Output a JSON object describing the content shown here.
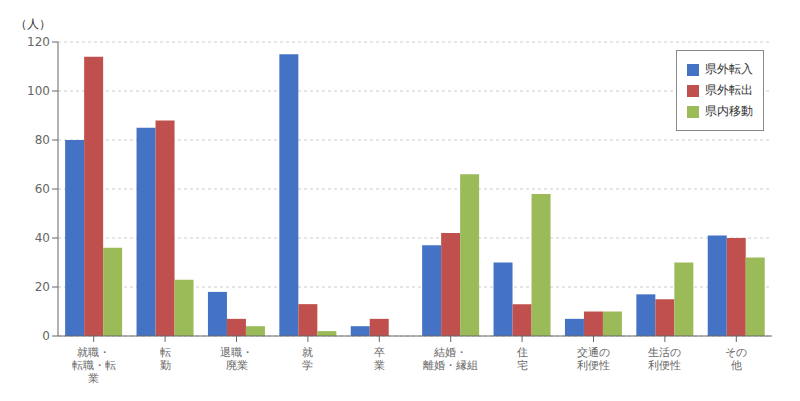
{
  "chart_data": {
    "type": "bar",
    "ylabel": "（人）",
    "categories": [
      "就職・\n転職・転\n業",
      "転\n勤",
      "退職・\n廃業",
      "就\n学",
      "卒\n業",
      "結婚・\n離婚・縁組",
      "住\n宅",
      "交通の\n利便性",
      "生活の\n利便性",
      "その\n他"
    ],
    "series": [
      {
        "name": "県外転入",
        "color": "#4472C4",
        "values": [
          80,
          85,
          18,
          115,
          4,
          37,
          30,
          7,
          17,
          41
        ]
      },
      {
        "name": "県外転出",
        "color": "#C0504D",
        "values": [
          114,
          88,
          7,
          13,
          7,
          42,
          13,
          10,
          15,
          40
        ]
      },
      {
        "name": "県内移動",
        "color": "#9BBB59",
        "values": [
          36,
          23,
          4,
          2,
          0,
          66,
          58,
          10,
          30,
          32
        ]
      }
    ],
    "ylim": [
      0,
      120
    ],
    "yticks": [
      0,
      20,
      40,
      60,
      80,
      100,
      120
    ],
    "grid": true,
    "legend": "upper right"
  }
}
